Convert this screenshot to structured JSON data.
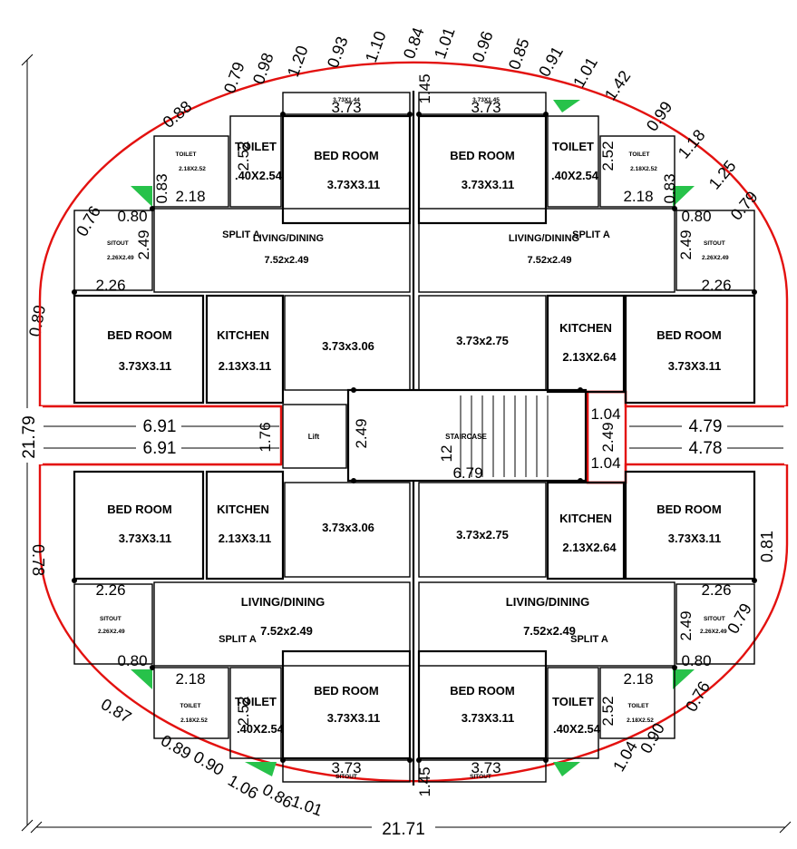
{
  "overall": {
    "width": "21.71",
    "height": "21.79",
    "side_left": "0.89"
  },
  "mid_dims": {
    "left_top": "6.91",
    "left_bottom": "6.91",
    "lift_gap": "1.76",
    "lift_h": "2.49",
    "right_top": "4.79",
    "right_bottom": "4.78",
    "right_a": "1.04",
    "right_b": "2.49",
    "right_c": "1.04",
    "stair_a": "12",
    "stair_b": "6.79"
  },
  "labels": {
    "bed_room": "BED ROOM",
    "toilet": "TOILET",
    "kitchen": "KITCHEN",
    "living": "LIVING/DINING",
    "split": "SPLIT A",
    "sitout": "SITOUT",
    "lift": "Lift",
    "staircase": "STAIRCASE",
    "toilet_small": "TOILET",
    "sitout_small": "SITOUT"
  },
  "sizes": {
    "bed": "3.73X3.11",
    "toilet": ".40X2.54",
    "kitchen": "2.13X3.11",
    "kitchen_r": "2.13X2.64",
    "living": "7.52x2.49",
    "hall_l": "3.73x3.06",
    "hall_r": "3.73x2.75",
    "toilet_small": "2.18X2.52",
    "sitout_small": "2.26X2.49",
    "sitout_top_l": "3.73X1.44",
    "sitout_top_r": "3.73X1.45",
    "d218": "2.18",
    "d226": "2.26",
    "d252": "2.52",
    "d249": "2.49",
    "d080": "0.80",
    "d373": "3.73",
    "d145": "1.45",
    "d083": "0.83"
  },
  "arc_top": [
    "0.79",
    "0.98",
    "1.20",
    "0.93",
    "1.10",
    "0.84",
    "1.01",
    "0.96",
    "0.85",
    "0.91",
    "1.01",
    "1.42",
    "0.99",
    "1.18",
    "1.25",
    "0.79"
  ],
  "arc_left": [
    "0.88",
    "0.76",
    "0.78",
    "0.87",
    "0.89",
    "0.90",
    "1.06",
    "0.86",
    "1.01"
  ],
  "arc_right": [
    "0.81",
    "0.79",
    "0.76",
    "1.04",
    "0.90"
  ]
}
